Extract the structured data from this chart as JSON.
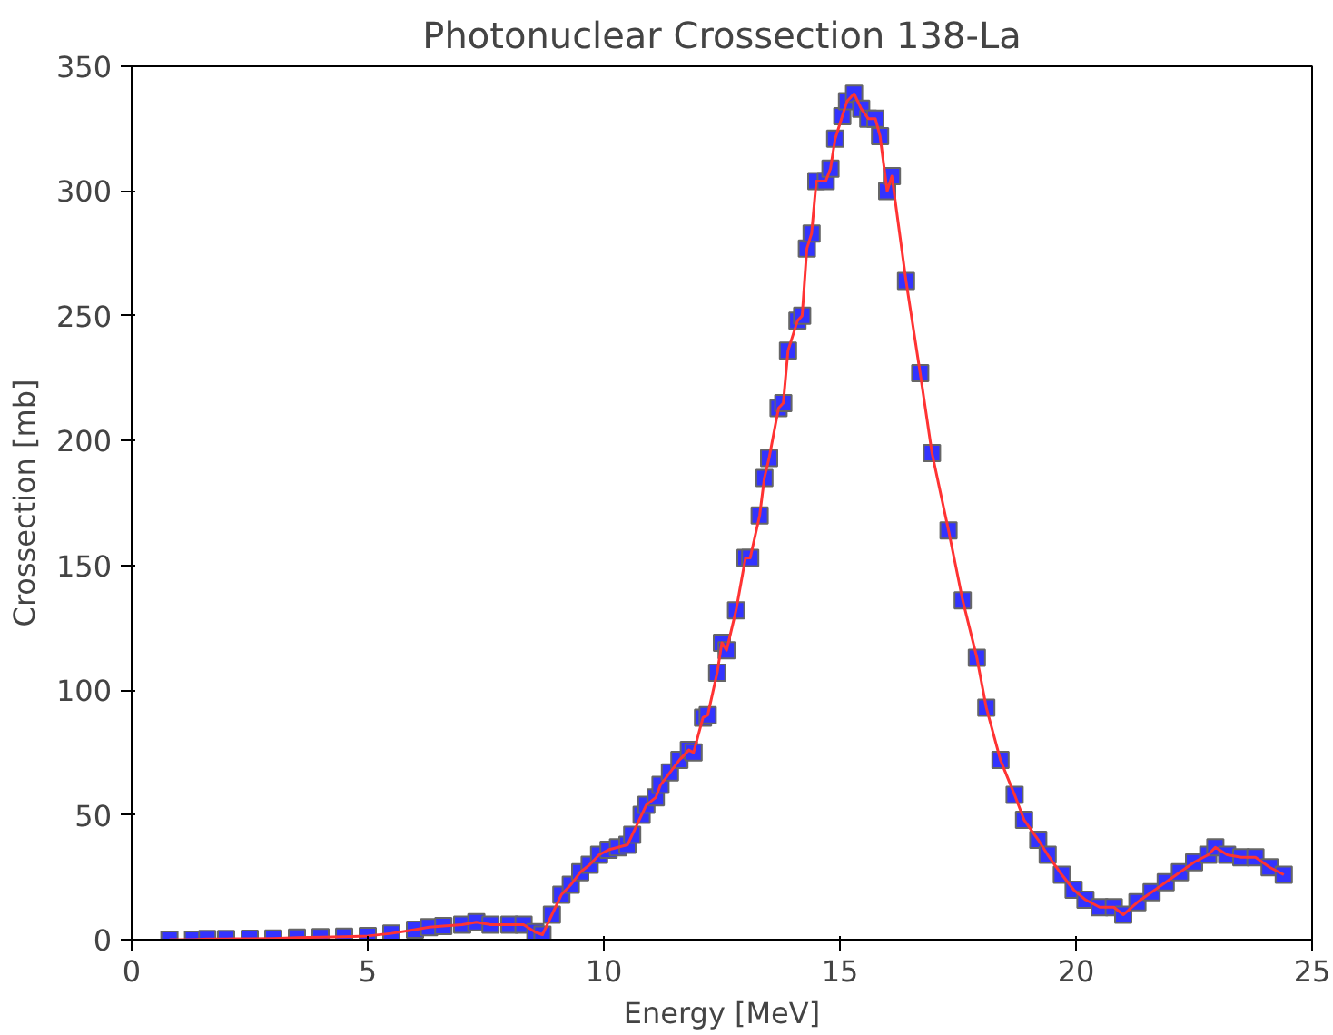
{
  "chart_data": {
    "type": "line",
    "title": "Photonuclear Crossection 138-La",
    "xlabel": "Energy [MeV]",
    "ylabel": "Crossection [mb]",
    "xlim": [
      0,
      25
    ],
    "ylim": [
      0,
      350
    ],
    "xticks": [
      0,
      5,
      10,
      15,
      20,
      25
    ],
    "yticks": [
      0,
      50,
      100,
      150,
      200,
      250,
      300,
      350
    ],
    "grid": false,
    "series": [
      {
        "type": "scatter",
        "color": "#3333ff",
        "marker": "square",
        "x": [
          0.8,
          1.3,
          1.6,
          2,
          2.5,
          3,
          3.5,
          4,
          4.5,
          5,
          5.5,
          6,
          6.3,
          6.6,
          7,
          7.3,
          7.6,
          8,
          8.3,
          8.55,
          8.7,
          8.9,
          9.1,
          9.3,
          9.5,
          9.7,
          9.9,
          10.1,
          10.3,
          10.5,
          10.6,
          10.8,
          10.9,
          11.1,
          11.2,
          11.4,
          11.6,
          11.8,
          11.9,
          12.1,
          12.2,
          12.4,
          12.5,
          12.6,
          12.8,
          13,
          13.1,
          13.3,
          13.4,
          13.5,
          13.7,
          13.8,
          13.9,
          14.1,
          14.2,
          14.3,
          14.4,
          14.5,
          14.7,
          14.8,
          14.9,
          15.05,
          15.15,
          15.3,
          15.45,
          15.6,
          15.75,
          15.85,
          16,
          16.1,
          16.4,
          16.7,
          16.95,
          17.3,
          17.6,
          17.9,
          18.1,
          18.4,
          18.7,
          18.9,
          19.2,
          19.4,
          19.7,
          19.95,
          20.2,
          20.5,
          20.8,
          21,
          21.3,
          21.6,
          21.9,
          22.2,
          22.5,
          22.8,
          22.95,
          23.2,
          23.5,
          23.8,
          24.1,
          24.4
        ],
        "values": [
          0,
          0,
          0.3,
          0.3,
          0.4,
          0.5,
          0.8,
          1,
          1.2,
          1.5,
          2.5,
          4,
          5,
          5.5,
          6,
          7,
          6,
          6,
          6,
          3,
          2,
          10,
          18,
          22,
          27,
          30,
          34,
          36,
          37,
          38,
          42,
          50,
          54,
          57,
          62,
          67,
          72,
          76,
          75,
          89,
          90,
          107,
          119,
          116,
          132,
          153,
          153,
          170,
          185,
          193,
          213,
          215,
          236,
          248,
          250,
          277,
          283,
          304,
          304,
          309,
          321,
          330,
          336,
          339,
          333,
          329,
          329,
          322,
          300,
          306,
          264,
          227,
          195,
          164,
          136,
          113,
          93,
          72,
          58,
          48,
          40,
          34,
          26,
          20,
          16,
          13,
          13,
          10,
          15,
          19,
          23,
          27,
          31,
          34,
          37,
          34,
          33,
          33,
          29,
          26
        ]
      },
      {
        "color": "#ff3333",
        "line_style": "solid",
        "x": [
          0.8,
          1.3,
          1.6,
          2,
          2.5,
          3,
          3.5,
          4,
          4.5,
          5,
          5.5,
          6,
          6.3,
          6.6,
          7,
          7.3,
          7.6,
          8,
          8.3,
          8.55,
          8.7,
          8.9,
          9.1,
          9.3,
          9.5,
          9.7,
          9.9,
          10.1,
          10.3,
          10.5,
          10.6,
          10.8,
          10.9,
          11.1,
          11.2,
          11.4,
          11.6,
          11.8,
          11.9,
          12.1,
          12.2,
          12.4,
          12.5,
          12.6,
          12.8,
          13,
          13.1,
          13.3,
          13.4,
          13.5,
          13.7,
          13.8,
          13.9,
          14.1,
          14.2,
          14.3,
          14.4,
          14.5,
          14.7,
          14.8,
          14.9,
          15.05,
          15.15,
          15.3,
          15.45,
          15.6,
          15.75,
          15.85,
          16,
          16.1,
          16.4,
          16.7,
          16.95,
          17.3,
          17.6,
          17.9,
          18.1,
          18.4,
          18.7,
          18.9,
          19.2,
          19.4,
          19.7,
          19.95,
          20.2,
          20.5,
          20.8,
          21,
          21.3,
          21.6,
          21.9,
          22.2,
          22.5,
          22.8,
          22.95,
          23.2,
          23.5,
          23.8,
          24.1,
          24.4
        ],
        "values": [
          0,
          0,
          0.3,
          0.3,
          0.4,
          0.5,
          0.8,
          1,
          1.2,
          1.5,
          2.5,
          4,
          5,
          5.5,
          6,
          7,
          6,
          6,
          6,
          3,
          2,
          10,
          18,
          22,
          27,
          30,
          34,
          36,
          37,
          38,
          42,
          50,
          54,
          57,
          62,
          67,
          72,
          76,
          75,
          89,
          90,
          107,
          119,
          116,
          132,
          153,
          153,
          170,
          185,
          193,
          213,
          215,
          236,
          248,
          250,
          277,
          283,
          304,
          304,
          309,
          321,
          330,
          336,
          339,
          333,
          329,
          329,
          322,
          300,
          306,
          264,
          227,
          195,
          164,
          136,
          113,
          93,
          72,
          58,
          48,
          40,
          34,
          26,
          20,
          16,
          13,
          13,
          10,
          15,
          19,
          23,
          27,
          31,
          34,
          37,
          34,
          33,
          33,
          29,
          26
        ]
      }
    ]
  }
}
